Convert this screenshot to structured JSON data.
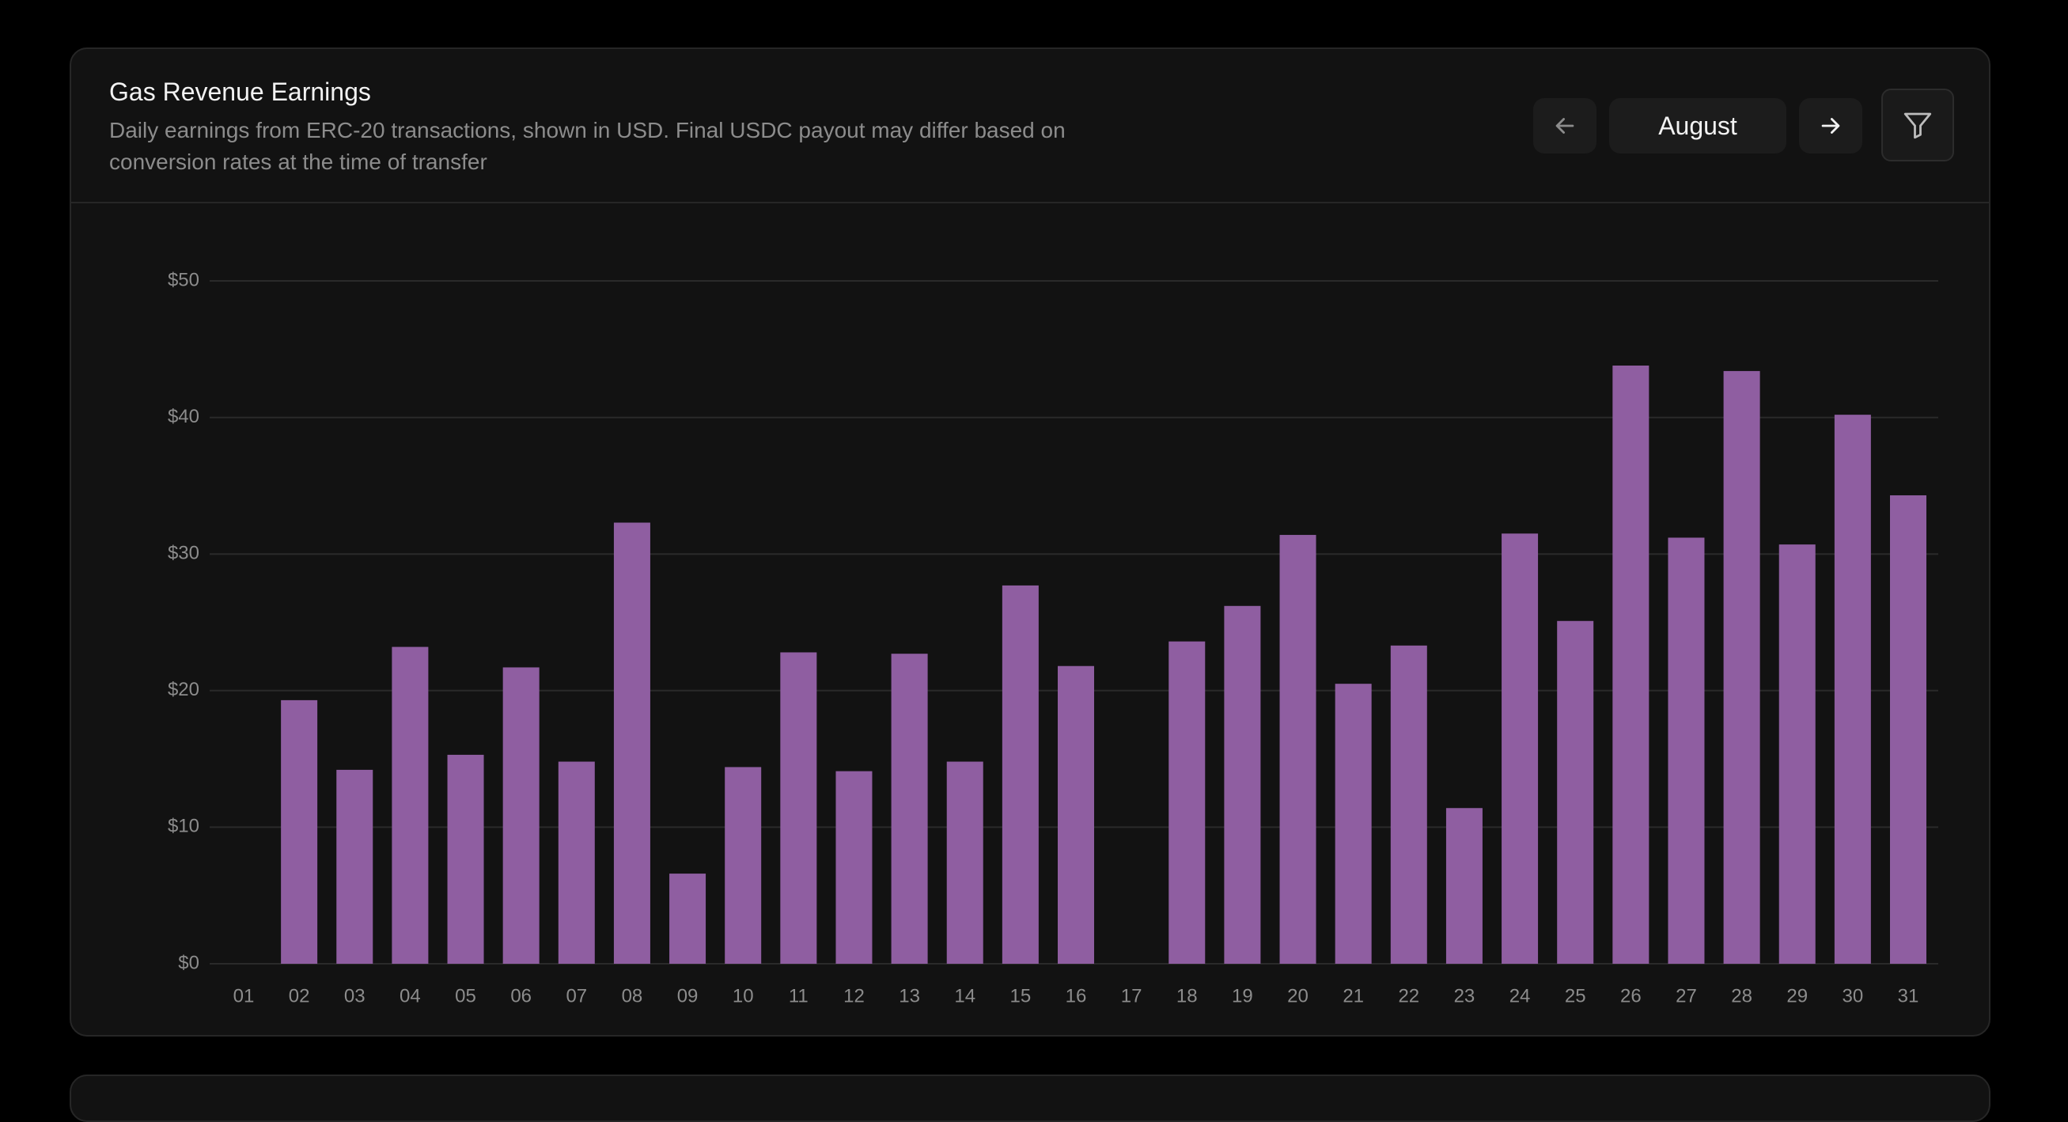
{
  "header": {
    "title": "Gas Revenue Earnings",
    "subtitle": "Daily earnings from ERC-20 transactions, shown in USD. Final USDC payout may differ based on conversion rates at the time of transfer",
    "month": "August"
  },
  "chart_data": {
    "type": "bar",
    "color": "#8f5ea1",
    "grid": true,
    "categories": [
      "01",
      "02",
      "03",
      "04",
      "05",
      "06",
      "07",
      "08",
      "09",
      "10",
      "11",
      "12",
      "13",
      "14",
      "15",
      "16",
      "17",
      "18",
      "19",
      "20",
      "21",
      "22",
      "23",
      "24",
      "25",
      "26",
      "27",
      "28",
      "29",
      "30",
      "31"
    ],
    "values": [
      null,
      19.3,
      14.2,
      23.2,
      15.3,
      21.7,
      14.8,
      32.3,
      6.6,
      14.4,
      22.8,
      14.1,
      22.7,
      14.8,
      27.7,
      21.8,
      null,
      23.6,
      26.2,
      31.4,
      20.5,
      23.3,
      11.4,
      31.5,
      25.1,
      43.8,
      31.2,
      43.4,
      30.7,
      40.2,
      34.3
    ],
    "ylim": [
      0,
      50
    ],
    "yticks": [
      {
        "value": 0,
        "label": "$0"
      },
      {
        "value": 10,
        "label": "$10"
      },
      {
        "value": 20,
        "label": "$20"
      },
      {
        "value": 30,
        "label": "$30"
      },
      {
        "value": 40,
        "label": "$40"
      },
      {
        "value": 50,
        "label": "$50"
      }
    ]
  }
}
